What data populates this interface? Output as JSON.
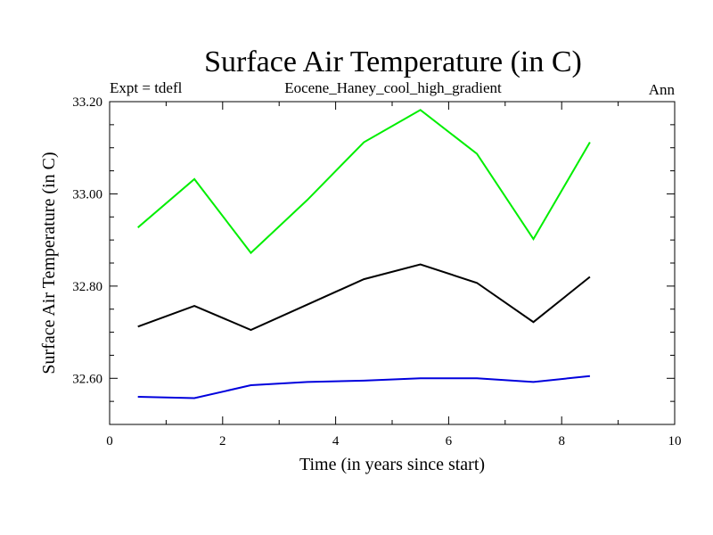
{
  "chart_data": {
    "type": "line",
    "title": "Surface Air Temperature (in C)",
    "header_left": "Expt = tdefl",
    "header_center": "Eocene_Haney_cool_high_gradient",
    "header_right": "Ann",
    "xlabel": "Time (in years since start)",
    "ylabel": "Surface Air Temperature (in C)",
    "xlim": [
      0,
      10
    ],
    "ylim": [
      32.5,
      33.2
    ],
    "xticks": [
      0,
      2,
      4,
      6,
      8,
      10
    ],
    "xtick_labels": [
      "0",
      "2",
      "4",
      "6",
      "8",
      "10"
    ],
    "yticks": [
      32.6,
      32.8,
      33.0,
      33.2
    ],
    "ytick_labels": [
      "32.60",
      "32.80",
      "33.00",
      "33.20"
    ],
    "x": [
      0.5,
      1.5,
      2.5,
      3.5,
      4.5,
      5.5,
      6.5,
      7.5,
      8.5
    ],
    "series": [
      {
        "color": "#00ee00",
        "values": [
          32.927,
          33.032,
          32.872,
          32.987,
          33.112,
          33.182,
          33.087,
          32.902,
          33.112
        ]
      },
      {
        "color": "#000000",
        "values": [
          32.712,
          32.757,
          32.705,
          32.76,
          32.815,
          32.847,
          32.807,
          32.722,
          32.82
        ]
      },
      {
        "color": "#0000dd",
        "values": [
          32.56,
          32.557,
          32.585,
          32.592,
          32.595,
          32.6,
          32.6,
          32.592,
          32.605
        ]
      }
    ],
    "grid": false
  }
}
